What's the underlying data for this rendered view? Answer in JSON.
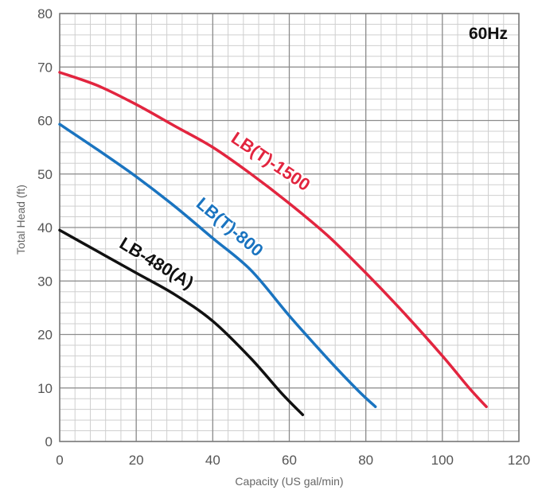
{
  "chart_data": {
    "type": "line",
    "frequency_label": "60Hz",
    "xlabel": "Capacity (US gal/min)",
    "ylabel": "Total Head (ft)",
    "xlim": [
      0,
      120
    ],
    "ylim": [
      0,
      80
    ],
    "x_major_ticks": [
      0,
      20,
      40,
      60,
      80,
      100,
      120
    ],
    "y_major_ticks": [
      0,
      10,
      20,
      30,
      40,
      50,
      60,
      70,
      80
    ],
    "x_tick_labels": [
      "0",
      "20",
      "40",
      "60",
      "80",
      "100",
      "120"
    ],
    "y_tick_labels": [
      "0",
      "10",
      "20",
      "30",
      "40",
      "50",
      "60",
      "70",
      "80"
    ],
    "x_minor_step": 4,
    "y_minor_step": 2,
    "grid": true,
    "series": [
      {
        "name": "LB-480(A)",
        "color": "#111111",
        "points": [
          [
            0,
            39.5
          ],
          [
            10,
            35.5
          ],
          [
            20,
            31.5
          ],
          [
            30,
            27.5
          ],
          [
            40,
            22.5
          ],
          [
            50,
            15.5
          ],
          [
            58,
            9
          ],
          [
            63.5,
            5
          ]
        ]
      },
      {
        "name": "LB(T)-800",
        "color": "#1a74c0",
        "points": [
          [
            0,
            59.3
          ],
          [
            10,
            54.5
          ],
          [
            20,
            49.5
          ],
          [
            30,
            44
          ],
          [
            40,
            38
          ],
          [
            50,
            32
          ],
          [
            60,
            23.5
          ],
          [
            70,
            15.5
          ],
          [
            78,
            9.5
          ],
          [
            82.5,
            6.5
          ]
        ]
      },
      {
        "name": "LB(T)-1500",
        "color": "#e2253f",
        "points": [
          [
            0,
            69
          ],
          [
            10,
            66.5
          ],
          [
            20,
            63
          ],
          [
            30,
            59
          ],
          [
            40,
            55
          ],
          [
            50,
            50
          ],
          [
            60,
            44.5
          ],
          [
            70,
            38.5
          ],
          [
            80,
            31.5
          ],
          [
            90,
            24
          ],
          [
            100,
            16
          ],
          [
            107,
            10
          ],
          [
            111.5,
            6.5
          ]
        ]
      }
    ]
  }
}
